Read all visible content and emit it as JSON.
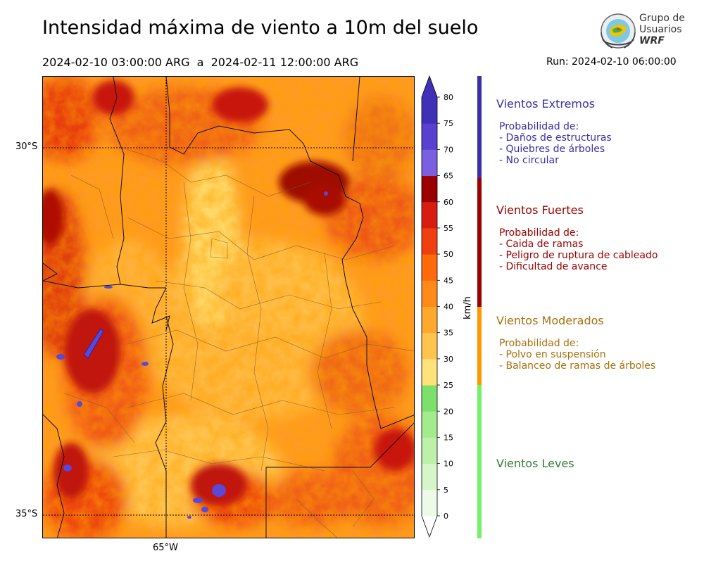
{
  "header": {
    "title": "Intensidad máxima de viento a 10m del suelo",
    "period": "2024-02-10 03:00:00 ARG  a  2024-02-11 12:00:00 ARG",
    "run": "Run: 2024-02-10 06:00:00"
  },
  "logo": {
    "line1": "Grupo de",
    "line2": "Usuarios",
    "line3": "WRF"
  },
  "map": {
    "lat_labels": [
      "30°S",
      "35°S"
    ],
    "lon_labels": [
      "65°W"
    ]
  },
  "colorbar": {
    "unit": "km/h",
    "ticks": [
      "0",
      "5",
      "10",
      "15",
      "20",
      "25",
      "30",
      "35",
      "40",
      "45",
      "50",
      "55",
      "60",
      "65",
      "70",
      "75",
      "80"
    ],
    "colors": [
      "#eefae8",
      "#d6f5c8",
      "#bdf0a8",
      "#a3eb8c",
      "#8ae676",
      "#7de06a",
      "#ffe37a",
      "#ffc44d",
      "#ffa82e",
      "#ff8a1a",
      "#ff6a0a",
      "#f04010",
      "#d81c10",
      "#b80000",
      "#9a0000",
      "#7a60e0",
      "#5a40d0",
      "#4030b8"
    ],
    "low_color": "#ffffff",
    "high_color": "#4030b8"
  },
  "categories": [
    {
      "title": "Vientos Extremos",
      "color": "#3b2ea8",
      "lines": [
        "Probabilidad de:",
        "- Daños de estructuras",
        "- Quiebres de árboles",
        "- No circular"
      ]
    },
    {
      "title": "Vientos Fuertes",
      "color": "#9a0000",
      "lines": [
        "Probabilidad de:",
        "- Caida de ramas",
        "- Peligro de ruptura de cableado",
        "- Dificultad de avance"
      ]
    },
    {
      "title": "Vientos Moderados",
      "color": "#a8700c",
      "lines": [
        "Probabilidad de:",
        "- Polvo en suspensión",
        "- Balanceo de ramas de árboles"
      ]
    },
    {
      "title": "Vientos Leves",
      "color": "#2e7d32",
      "lines": []
    }
  ],
  "legend_bar_colors": [
    "#3b2ea8",
    "#9a0000",
    "#ff9800",
    "#74f06a"
  ]
}
